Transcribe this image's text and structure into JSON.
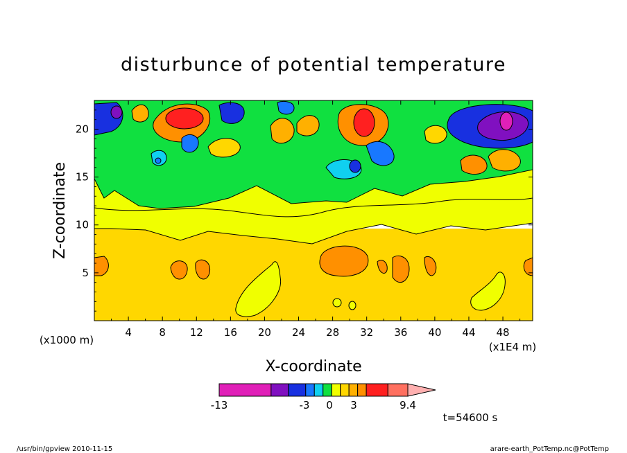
{
  "chart_data": {
    "type": "heatmap",
    "title": "disturbunce of potential temperature",
    "xlabel": "X-coordinate",
    "ylabel": "Z-coordinate",
    "x_unit_left": "(x1000 m)",
    "x_unit_right": "(x1E4 m)",
    "xlim": [
      0,
      51.5
    ],
    "ylim": [
      0,
      23
    ],
    "x_ticks": [
      "4",
      "8",
      "12",
      "16",
      "20",
      "24",
      "28",
      "32",
      "36",
      "40",
      "44",
      "48"
    ],
    "x_tick_values": [
      4,
      8,
      12,
      16,
      20,
      24,
      28,
      32,
      36,
      40,
      44,
      48
    ],
    "y_ticks": [
      "5",
      "10",
      "15",
      "20"
    ],
    "y_tick_values": [
      5,
      10,
      15,
      20
    ],
    "colorbar": {
      "min": -13,
      "max": 9.4,
      "labels": [
        "-13",
        "-3",
        "0",
        "3",
        "9.4"
      ],
      "label_values": [
        -13,
        -3,
        0,
        3,
        9.4
      ],
      "colors": [
        "#e020b8",
        "#8010c0",
        "#1830e0",
        "#1878ff",
        "#10d0f0",
        "#10e040",
        "#f0ff00",
        "#ffd700",
        "#ffb000",
        "#ff9000",
        "#ff2020",
        "#ff7060",
        "#ffb0b0"
      ]
    },
    "time_label": "t=54600 s",
    "approx_field": [
      {
        "region": "lower layer",
        "x": [
          0,
          51.5
        ],
        "z": [
          0,
          10
        ],
        "value": 1.2
      },
      {
        "region": "middle layer",
        "x": [
          0,
          51.5
        ],
        "z": [
          10,
          15
        ],
        "value": 0.3
      },
      {
        "region": "upper layer",
        "x": [
          0,
          51.5
        ],
        "z": [
          15,
          23
        ],
        "value": -0.5
      }
    ],
    "anomalies": [
      {
        "x": 10.5,
        "z": 21.2,
        "value": 5.0
      },
      {
        "x": 31.5,
        "z": 21.0,
        "value": 5.0
      },
      {
        "x": 48,
        "z": 20.5,
        "value": -9.0
      },
      {
        "x": 2.5,
        "z": 21.5,
        "value": -4.0
      },
      {
        "x": 15,
        "z": 21.5,
        "value": -4.0
      },
      {
        "x": 29,
        "z": 8.5,
        "value": 2.0
      }
    ]
  },
  "footer": {
    "left": "/usr/bin/gpview   2010-11-15",
    "right": "arare-earth_PotTemp.nc@PotTemp"
  }
}
